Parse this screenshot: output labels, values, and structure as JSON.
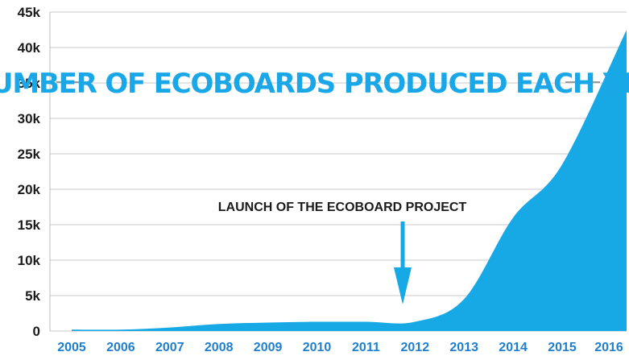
{
  "chart_data": {
    "type": "area",
    "title": "NUMBER OF ECOBOARDS PRODUCED EACH YEAR",
    "xlabel": "",
    "ylabel": "",
    "x": [
      "2005",
      "2006",
      "2007",
      "2008",
      "2009",
      "2010",
      "2011",
      "2012",
      "2013",
      "2014",
      "2015",
      "2016"
    ],
    "y_ticks": [
      "0",
      "5k",
      "10k",
      "15k",
      "20k",
      "25k",
      "30k",
      "35k",
      "40k",
      "45k"
    ],
    "ylim": [
      0,
      45000
    ],
    "grid": true,
    "series": [
      {
        "values": [
          200,
          200,
          500,
          1000,
          1200,
          1300,
          1300,
          1300,
          4500,
          16000,
          23500,
          42500
        ]
      }
    ],
    "annotations": [
      {
        "text": "LAUNCH OF THE ECOBOARD PROJECT",
        "x": "2012"
      }
    ],
    "colors": {
      "area": "#17a8e6",
      "title": "#1aa7e8",
      "x_ticks": "#1f7fcf",
      "y_ticks": "#1b1b1b",
      "grid": "#c8c8c8"
    }
  }
}
